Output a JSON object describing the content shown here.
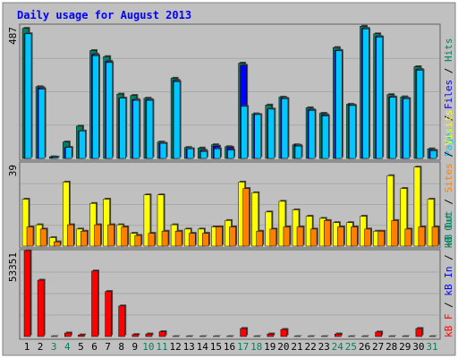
{
  "title": "Daily usage for August 2013",
  "colors": {
    "background": "#c0c0c0",
    "plot_background": "#c0c0c0",
    "title": "#0000ff",
    "hits": "#00805c",
    "files": "#0000ff",
    "pages": "#00c8ff",
    "visits": "#ffff00",
    "sites": "#ff8000",
    "kb_in": "#ff0000",
    "kb_out": "#ff0000",
    "weekend_day": "#00805c",
    "weekday": "#000000"
  },
  "chart_data": [
    {
      "type": "bar",
      "panel": "top",
      "ymax_label": "487",
      "ylim": [
        0,
        487
      ],
      "legend": [
        "Pages",
        "Files",
        "Hits"
      ],
      "categories": [
        "1",
        "2",
        "3",
        "4",
        "5",
        "6",
        "7",
        "8",
        "9",
        "10",
        "11",
        "12",
        "13",
        "14",
        "15",
        "16",
        "17",
        "18",
        "19",
        "20",
        "21",
        "22",
        "23",
        "24",
        "25",
        "26",
        "27",
        "28",
        "29",
        "30",
        "31"
      ],
      "series": [
        {
          "name": "Hits",
          "values": [
            475,
            262,
            6,
            60,
            118,
            394,
            372,
            235,
            230,
            220,
            60,
            293,
            40,
            38,
            50,
            43,
            348,
            163,
            195,
            224,
            50,
            185,
            165,
            405,
            198,
            483,
            455,
            233,
            225,
            335,
            35
          ]
        },
        {
          "name": "Files",
          "values": [
            455,
            258,
            5,
            40,
            100,
            380,
            355,
            220,
            215,
            215,
            55,
            285,
            35,
            30,
            45,
            40,
            340,
            160,
            180,
            220,
            48,
            178,
            160,
            395,
            195,
            475,
            445,
            225,
            220,
            325,
            30
          ]
        },
        {
          "name": "Pages",
          "values": [
            455,
            253,
            4,
            40,
            100,
            375,
            350,
            220,
            212,
            212,
            55,
            280,
            35,
            25,
            35,
            30,
            190,
            160,
            180,
            218,
            45,
            175,
            155,
            393,
            193,
            473,
            443,
            223,
            218,
            322,
            28
          ]
        }
      ]
    },
    {
      "type": "bar",
      "panel": "middle",
      "ymax_label": "39",
      "ylim": [
        0,
        39
      ],
      "legend": [
        "Visits",
        "Sites",
        "kB Out"
      ],
      "categories": [
        "1",
        "2",
        "3",
        "4",
        "5",
        "6",
        "7",
        "8",
        "9",
        "10",
        "11",
        "12",
        "13",
        "14",
        "15",
        "16",
        "17",
        "18",
        "19",
        "20",
        "21",
        "22",
        "23",
        "24",
        "25",
        "26",
        "27",
        "28",
        "29",
        "30",
        "31"
      ],
      "series": [
        {
          "name": "Visits",
          "values": [
            22,
            10,
            4,
            30,
            8,
            20,
            22,
            10,
            6,
            24,
            24,
            10,
            8,
            8,
            9,
            12,
            30,
            25,
            16,
            21,
            17,
            14,
            13,
            11,
            11,
            14,
            7,
            33,
            27,
            37,
            22
          ]
        },
        {
          "name": "Sites",
          "values": [
            9,
            8,
            2,
            10,
            7,
            10,
            10,
            9,
            5,
            6,
            7,
            7,
            6,
            6,
            9,
            9,
            27,
            7,
            8,
            9,
            9,
            8,
            12,
            9,
            9,
            8,
            7,
            12,
            8,
            9,
            9
          ]
        }
      ]
    },
    {
      "type": "bar",
      "panel": "bottom",
      "ymax_label": "53351",
      "ylim": [
        0,
        53351
      ],
      "legend": [
        "kB F",
        "kB In",
        "kB Out"
      ],
      "categories": [
        "1",
        "2",
        "3",
        "4",
        "5",
        "6",
        "7",
        "8",
        "9",
        "10",
        "11",
        "12",
        "13",
        "14",
        "15",
        "16",
        "17",
        "18",
        "19",
        "20",
        "21",
        "22",
        "23",
        "24",
        "25",
        "26",
        "27",
        "28",
        "29",
        "30",
        "31"
      ],
      "series": [
        {
          "name": "kB F",
          "values": [
            53351,
            35000,
            200,
            2200,
            1000,
            40700,
            28000,
            19000,
            1200,
            1600,
            3000,
            200,
            200,
            200,
            200,
            200,
            5000,
            200,
            1600,
            4400,
            200,
            200,
            200,
            1600,
            200,
            200,
            2800,
            200,
            200,
            5000,
            200
          ]
        }
      ]
    }
  ],
  "x_labels": {
    "weekend_days": [
      "3",
      "4",
      "10",
      "11",
      "17",
      "18",
      "24",
      "25",
      "31"
    ]
  }
}
